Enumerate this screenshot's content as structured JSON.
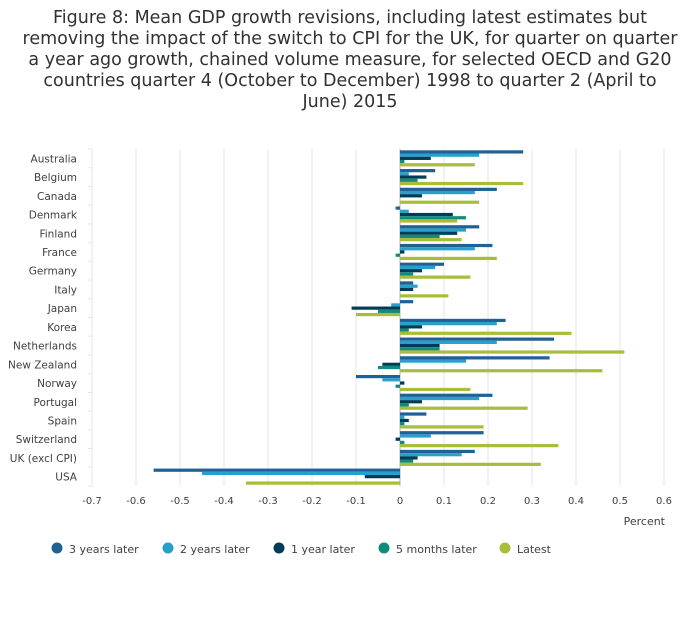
{
  "title": "Figure 8: Mean GDP growth revisions, including latest estimates but removing the impact of the switch to CPI for the UK, for quarter on quarter a year ago growth, chained volume measure, for selected OECD and G20 countries quarter 4 (October to December) 1998 to quarter 2 (April to June) 2015",
  "chart_data": {
    "type": "bar",
    "orientation": "horizontal",
    "title": "Figure 8: Mean GDP growth revisions, including latest estimates but removing the impact of the switch to CPI for the UK, for quarter on quarter a year ago growth, chained volume measure, for selected OECD and G20 countries quarter 4 (October to December) 1998 to quarter 2 (April to June) 2015",
    "xlabel": "Percent",
    "ylabel": "",
    "xlim": [
      -0.7,
      0.6
    ],
    "xticks": [
      -0.7,
      -0.6,
      -0.5,
      -0.4,
      -0.3,
      -0.2,
      -0.1,
      0,
      0.1,
      0.2,
      0.3,
      0.4,
      0.5,
      0.6
    ],
    "grid": true,
    "legend_position": "bottom",
    "categories": [
      "Australia",
      "Belgium",
      "Canada",
      "Denmark",
      "Finland",
      "France",
      "Germany",
      "Italy",
      "Japan",
      "Korea",
      "Netherlands",
      "New Zealand",
      "Norway",
      "Portugal",
      "Spain",
      "Switzerland",
      "UK (excl CPI)",
      "USA"
    ],
    "series": [
      {
        "name": "3 years later",
        "color": "#206095",
        "values": [
          0.28,
          0.08,
          0.22,
          -0.01,
          0.18,
          0.21,
          0.1,
          0.03,
          0.03,
          0.24,
          0.35,
          0.34,
          -0.1,
          0.21,
          0.06,
          0.19,
          0.17,
          -0.56
        ]
      },
      {
        "name": "2 years later",
        "color": "#27a0cc",
        "values": [
          0.18,
          0.02,
          0.17,
          0.02,
          0.15,
          0.17,
          0.08,
          0.04,
          -0.02,
          0.22,
          0.22,
          0.15,
          -0.04,
          0.18,
          0.01,
          0.07,
          0.14,
          -0.45
        ]
      },
      {
        "name": "1 year later",
        "color": "#003c57",
        "values": [
          0.07,
          0.06,
          0.05,
          0.12,
          0.13,
          0.01,
          0.05,
          0.03,
          -0.11,
          0.05,
          0.09,
          -0.04,
          0.01,
          0.05,
          0.02,
          -0.01,
          0.04,
          -0.08
        ]
      },
      {
        "name": "5 months later",
        "color": "#118c7b",
        "values": [
          0.01,
          0.04,
          0.0,
          0.15,
          0.09,
          -0.01,
          0.03,
          0.0,
          -0.05,
          0.02,
          0.09,
          -0.05,
          -0.01,
          0.02,
          0.01,
          0.01,
          0.03,
          0.0
        ]
      },
      {
        "name": "Latest",
        "color": "#a8bd3a",
        "values": [
          0.17,
          0.28,
          0.18,
          0.13,
          0.14,
          0.22,
          0.16,
          0.11,
          -0.1,
          0.39,
          0.51,
          0.46,
          0.16,
          0.29,
          0.19,
          0.36,
          0.32,
          -0.35
        ]
      }
    ]
  }
}
